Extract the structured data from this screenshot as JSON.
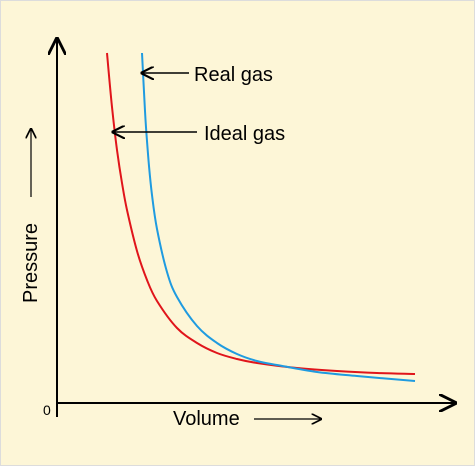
{
  "chart_data": {
    "type": "line",
    "title": "",
    "xlabel": "Volume",
    "ylabel": "Pressure",
    "origin_label": "0",
    "xlim": [
      0,
      390
    ],
    "ylim": [
      0,
      360
    ],
    "grid": false,
    "legend": "none",
    "series": [
      {
        "name": "Ideal gas",
        "color": "#e0151b",
        "x": [
          50,
          55,
          60,
          65,
          70,
          80,
          90,
          100,
          120,
          140,
          160,
          180,
          200,
          240,
          280,
          320,
          358
        ],
        "y": [
          350,
          296,
          253,
          220,
          193,
          152,
          123,
          102,
          75,
          60,
          50,
          44,
          40,
          35,
          32,
          30,
          29
        ]
      },
      {
        "name": "Real gas",
        "color": "#1f9be0",
        "x": [
          85,
          88,
          90,
          92,
          95,
          100,
          110,
          120,
          140,
          160,
          180,
          200,
          220,
          260,
          300,
          358
        ],
        "y": [
          350,
          292,
          262,
          237,
          208,
          174,
          131,
          106,
          77,
          60,
          49,
          42,
          38,
          31,
          27,
          22
        ]
      }
    ],
    "annotations": [
      {
        "text": "Real gas",
        "target_series": "Real gas"
      },
      {
        "text": "Ideal gas",
        "target_series": "Ideal gas"
      }
    ]
  },
  "colors": {
    "background": "#fdf6d7",
    "axes": "#000000",
    "ideal": "#e0151b",
    "real": "#1f9be0"
  }
}
